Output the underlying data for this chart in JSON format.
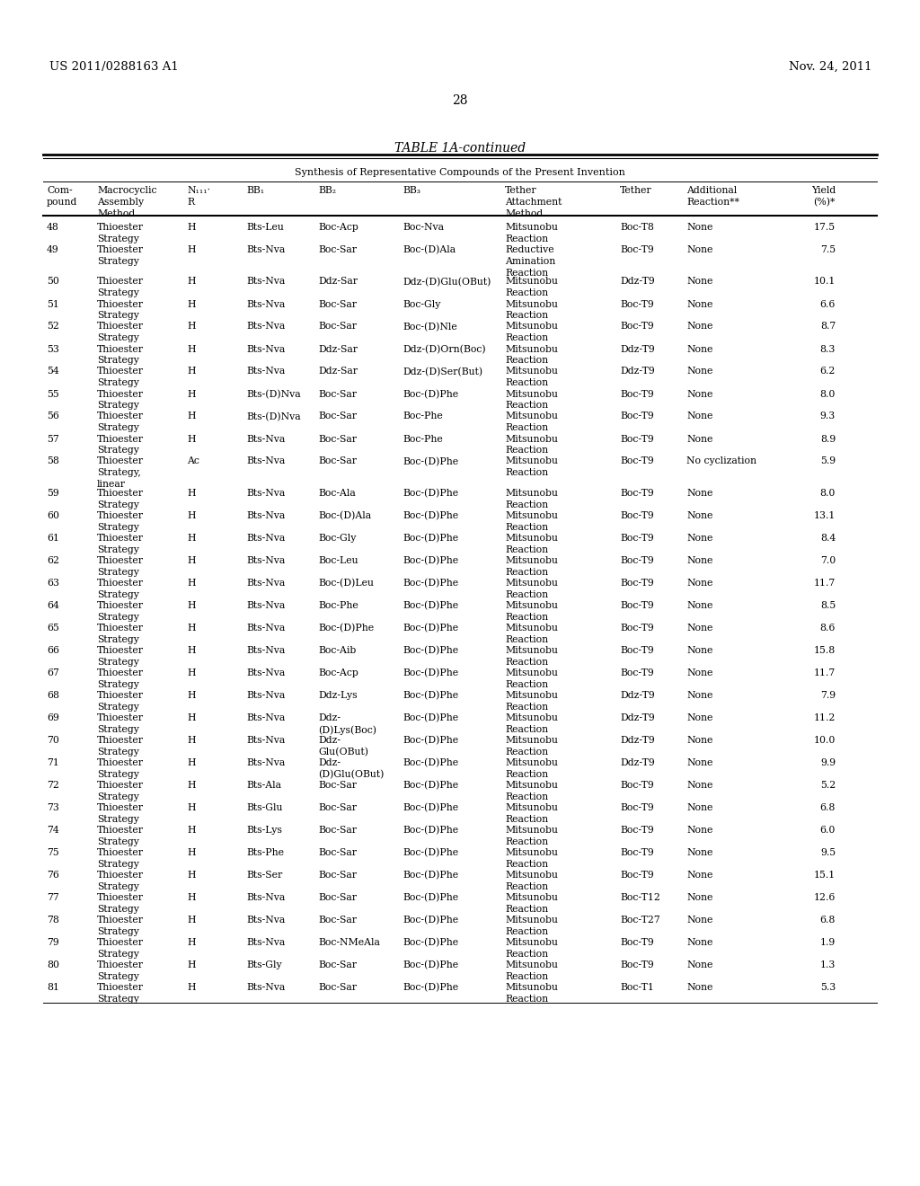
{
  "header_left": "US 2011/0288163 A1",
  "header_right": "Nov. 24, 2011",
  "page_number": "28",
  "table_title": "TABLE 1A-continued",
  "table_subtitle": "Synthesis of Representative Compounds of the Present Invention",
  "col_headers_line1": [
    "Com-",
    "Macrocyclic",
    "N₁₁₁·",
    "BB₁",
    "BB₂",
    "BB₃",
    "Tether",
    "",
    "Additional",
    "Yield"
  ],
  "col_headers_line2": [
    "pound",
    "Assembly",
    "R",
    "",
    "",
    "",
    "Attachment",
    "Tether",
    "Reaction**",
    "(%)*"
  ],
  "col_headers_line3": [
    "",
    "Method",
    "",
    "",
    "",
    "",
    "Method",
    "",
    "",
    ""
  ],
  "rows": [
    [
      "48",
      "Thioester\nStrategy",
      "H",
      "Bts-Leu",
      "Boc-Acp",
      "Boc-Nva",
      "Mitsunobu\nReaction",
      "Boc-T8",
      "None",
      "17.5"
    ],
    [
      "49",
      "Thioester\nStrategy",
      "H",
      "Bts-Nva",
      "Boc-Sar",
      "Boc-(D)Ala",
      "Reductive\nAmination\nReaction",
      "Boc-T9",
      "None",
      "7.5"
    ],
    [
      "50",
      "Thioester\nStrategy",
      "H",
      "Bts-Nva",
      "Ddz-Sar",
      "Ddz-(D)Glu(OBut)",
      "Mitsunobu\nReaction",
      "Ddz-T9",
      "None",
      "10.1"
    ],
    [
      "51",
      "Thioester\nStrategy",
      "H",
      "Bts-Nva",
      "Boc-Sar",
      "Boc-Gly",
      "Mitsunobu\nReaction",
      "Boc-T9",
      "None",
      "6.6"
    ],
    [
      "52",
      "Thioester\nStrategy",
      "H",
      "Bts-Nva",
      "Boc-Sar",
      "Boc-(D)Nle",
      "Mitsunobu\nReaction",
      "Boc-T9",
      "None",
      "8.7"
    ],
    [
      "53",
      "Thioester\nStrategy",
      "H",
      "Bts-Nva",
      "Ddz-Sar",
      "Ddz-(D)Orn(Boc)",
      "Mitsunobu\nReaction",
      "Ddz-T9",
      "None",
      "8.3"
    ],
    [
      "54",
      "Thioester\nStrategy",
      "H",
      "Bts-Nva",
      "Ddz-Sar",
      "Ddz-(D)Ser(But)",
      "Mitsunobu\nReaction",
      "Ddz-T9",
      "None",
      "6.2"
    ],
    [
      "55",
      "Thioester\nStrategy",
      "H",
      "Bts-(D)Nva",
      "Boc-Sar",
      "Boc-(D)Phe",
      "Mitsunobu\nReaction",
      "Boc-T9",
      "None",
      "8.0"
    ],
    [
      "56",
      "Thioester\nStrategy",
      "H",
      "Bts-(D)Nva",
      "Boc-Sar",
      "Boc-Phe",
      "Mitsunobu\nReaction",
      "Boc-T9",
      "None",
      "9.3"
    ],
    [
      "57",
      "Thioester\nStrategy",
      "H",
      "Bts-Nva",
      "Boc-Sar",
      "Boc-Phe",
      "Mitsunobu\nReaction",
      "Boc-T9",
      "None",
      "8.9"
    ],
    [
      "58",
      "Thioester\nStrategy,\nlinear",
      "Ac",
      "Bts-Nva",
      "Boc-Sar",
      "Boc-(D)Phe",
      "Mitsunobu\nReaction",
      "Boc-T9",
      "No cyclization",
      "5.9"
    ],
    [
      "59",
      "Thioester\nStrategy",
      "H",
      "Bts-Nva",
      "Boc-Ala",
      "Boc-(D)Phe",
      "Mitsunobu\nReaction",
      "Boc-T9",
      "None",
      "8.0"
    ],
    [
      "60",
      "Thioester\nStrategy",
      "H",
      "Bts-Nva",
      "Boc-(D)Ala",
      "Boc-(D)Phe",
      "Mitsunobu\nReaction",
      "Boc-T9",
      "None",
      "13.1"
    ],
    [
      "61",
      "Thioester\nStrategy",
      "H",
      "Bts-Nva",
      "Boc-Gly",
      "Boc-(D)Phe",
      "Mitsunobu\nReaction",
      "Boc-T9",
      "None",
      "8.4"
    ],
    [
      "62",
      "Thioester\nStrategy",
      "H",
      "Bts-Nva",
      "Boc-Leu",
      "Boc-(D)Phe",
      "Mitsunobu\nReaction",
      "Boc-T9",
      "None",
      "7.0"
    ],
    [
      "63",
      "Thioester\nStrategy",
      "H",
      "Bts-Nva",
      "Boc-(D)Leu",
      "Boc-(D)Phe",
      "Mitsunobu\nReaction",
      "Boc-T9",
      "None",
      "11.7"
    ],
    [
      "64",
      "Thioester\nStrategy",
      "H",
      "Bts-Nva",
      "Boc-Phe",
      "Boc-(D)Phe",
      "Mitsunobu\nReaction",
      "Boc-T9",
      "None",
      "8.5"
    ],
    [
      "65",
      "Thioester\nStrategy",
      "H",
      "Bts-Nva",
      "Boc-(D)Phe",
      "Boc-(D)Phe",
      "Mitsunobu\nReaction",
      "Boc-T9",
      "None",
      "8.6"
    ],
    [
      "66",
      "Thioester\nStrategy",
      "H",
      "Bts-Nva",
      "Boc-Aib",
      "Boc-(D)Phe",
      "Mitsunobu\nReaction",
      "Boc-T9",
      "None",
      "15.8"
    ],
    [
      "67",
      "Thioester\nStrategy",
      "H",
      "Bts-Nva",
      "Boc-Acp",
      "Boc-(D)Phe",
      "Mitsunobu\nReaction",
      "Boc-T9",
      "None",
      "11.7"
    ],
    [
      "68",
      "Thioester\nStrategy",
      "H",
      "Bts-Nva",
      "Ddz-Lys",
      "Boc-(D)Phe",
      "Mitsunobu\nReaction",
      "Ddz-T9",
      "None",
      "7.9"
    ],
    [
      "69",
      "Thioester\nStrategy",
      "H",
      "Bts-Nva",
      "Ddz-\n(D)Lys(Boc)",
      "Boc-(D)Phe",
      "Mitsunobu\nReaction",
      "Ddz-T9",
      "None",
      "11.2"
    ],
    [
      "70",
      "Thioester\nStrategy",
      "H",
      "Bts-Nva",
      "Ddz-\nGlu(OBut)",
      "Boc-(D)Phe",
      "Mitsunobu\nReaction",
      "Ddz-T9",
      "None",
      "10.0"
    ],
    [
      "71",
      "Thioester\nStrategy",
      "H",
      "Bts-Nva",
      "Ddz-\n(D)Glu(OBut)",
      "Boc-(D)Phe",
      "Mitsunobu\nReaction",
      "Ddz-T9",
      "None",
      "9.9"
    ],
    [
      "72",
      "Thioester\nStrategy",
      "H",
      "Bts-Ala",
      "Boc-Sar",
      "Boc-(D)Phe",
      "Mitsunobu\nReaction",
      "Boc-T9",
      "None",
      "5.2"
    ],
    [
      "73",
      "Thioester\nStrategy",
      "H",
      "Bts-Glu",
      "Boc-Sar",
      "Boc-(D)Phe",
      "Mitsunobu\nReaction",
      "Boc-T9",
      "None",
      "6.8"
    ],
    [
      "74",
      "Thioester\nStrategy",
      "H",
      "Bts-Lys",
      "Boc-Sar",
      "Boc-(D)Phe",
      "Mitsunobu\nReaction",
      "Boc-T9",
      "None",
      "6.0"
    ],
    [
      "75",
      "Thioester\nStrategy",
      "H",
      "Bts-Phe",
      "Boc-Sar",
      "Boc-(D)Phe",
      "Mitsunobu\nReaction",
      "Boc-T9",
      "None",
      "9.5"
    ],
    [
      "76",
      "Thioester\nStrategy",
      "H",
      "Bts-Ser",
      "Boc-Sar",
      "Boc-(D)Phe",
      "Mitsunobu\nReaction",
      "Boc-T9",
      "None",
      "15.1"
    ],
    [
      "77",
      "Thioester\nStrategy",
      "H",
      "Bts-Nva",
      "Boc-Sar",
      "Boc-(D)Phe",
      "Mitsunobu\nReaction",
      "Boc-T12",
      "None",
      "12.6"
    ],
    [
      "78",
      "Thioester\nStrategy",
      "H",
      "Bts-Nva",
      "Boc-Sar",
      "Boc-(D)Phe",
      "Mitsunobu\nReaction",
      "Boc-T27",
      "None",
      "6.8"
    ],
    [
      "79",
      "Thioester\nStrategy",
      "H",
      "Bts-Nva",
      "Boc-NMeAla",
      "Boc-(D)Phe",
      "Mitsunobu\nReaction",
      "Boc-T9",
      "None",
      "1.9"
    ],
    [
      "80",
      "Thioester\nStrategy",
      "H",
      "Bts-Gly",
      "Boc-Sar",
      "Boc-(D)Phe",
      "Mitsunobu\nReaction",
      "Boc-T9",
      "None",
      "1.3"
    ],
    [
      "81",
      "Thioester\nStrategy",
      "H",
      "Bts-Nva",
      "Boc-Sar",
      "Boc-(D)Phe",
      "Mitsunobu\nReaction",
      "Boc-T1",
      "None",
      "5.3"
    ]
  ]
}
